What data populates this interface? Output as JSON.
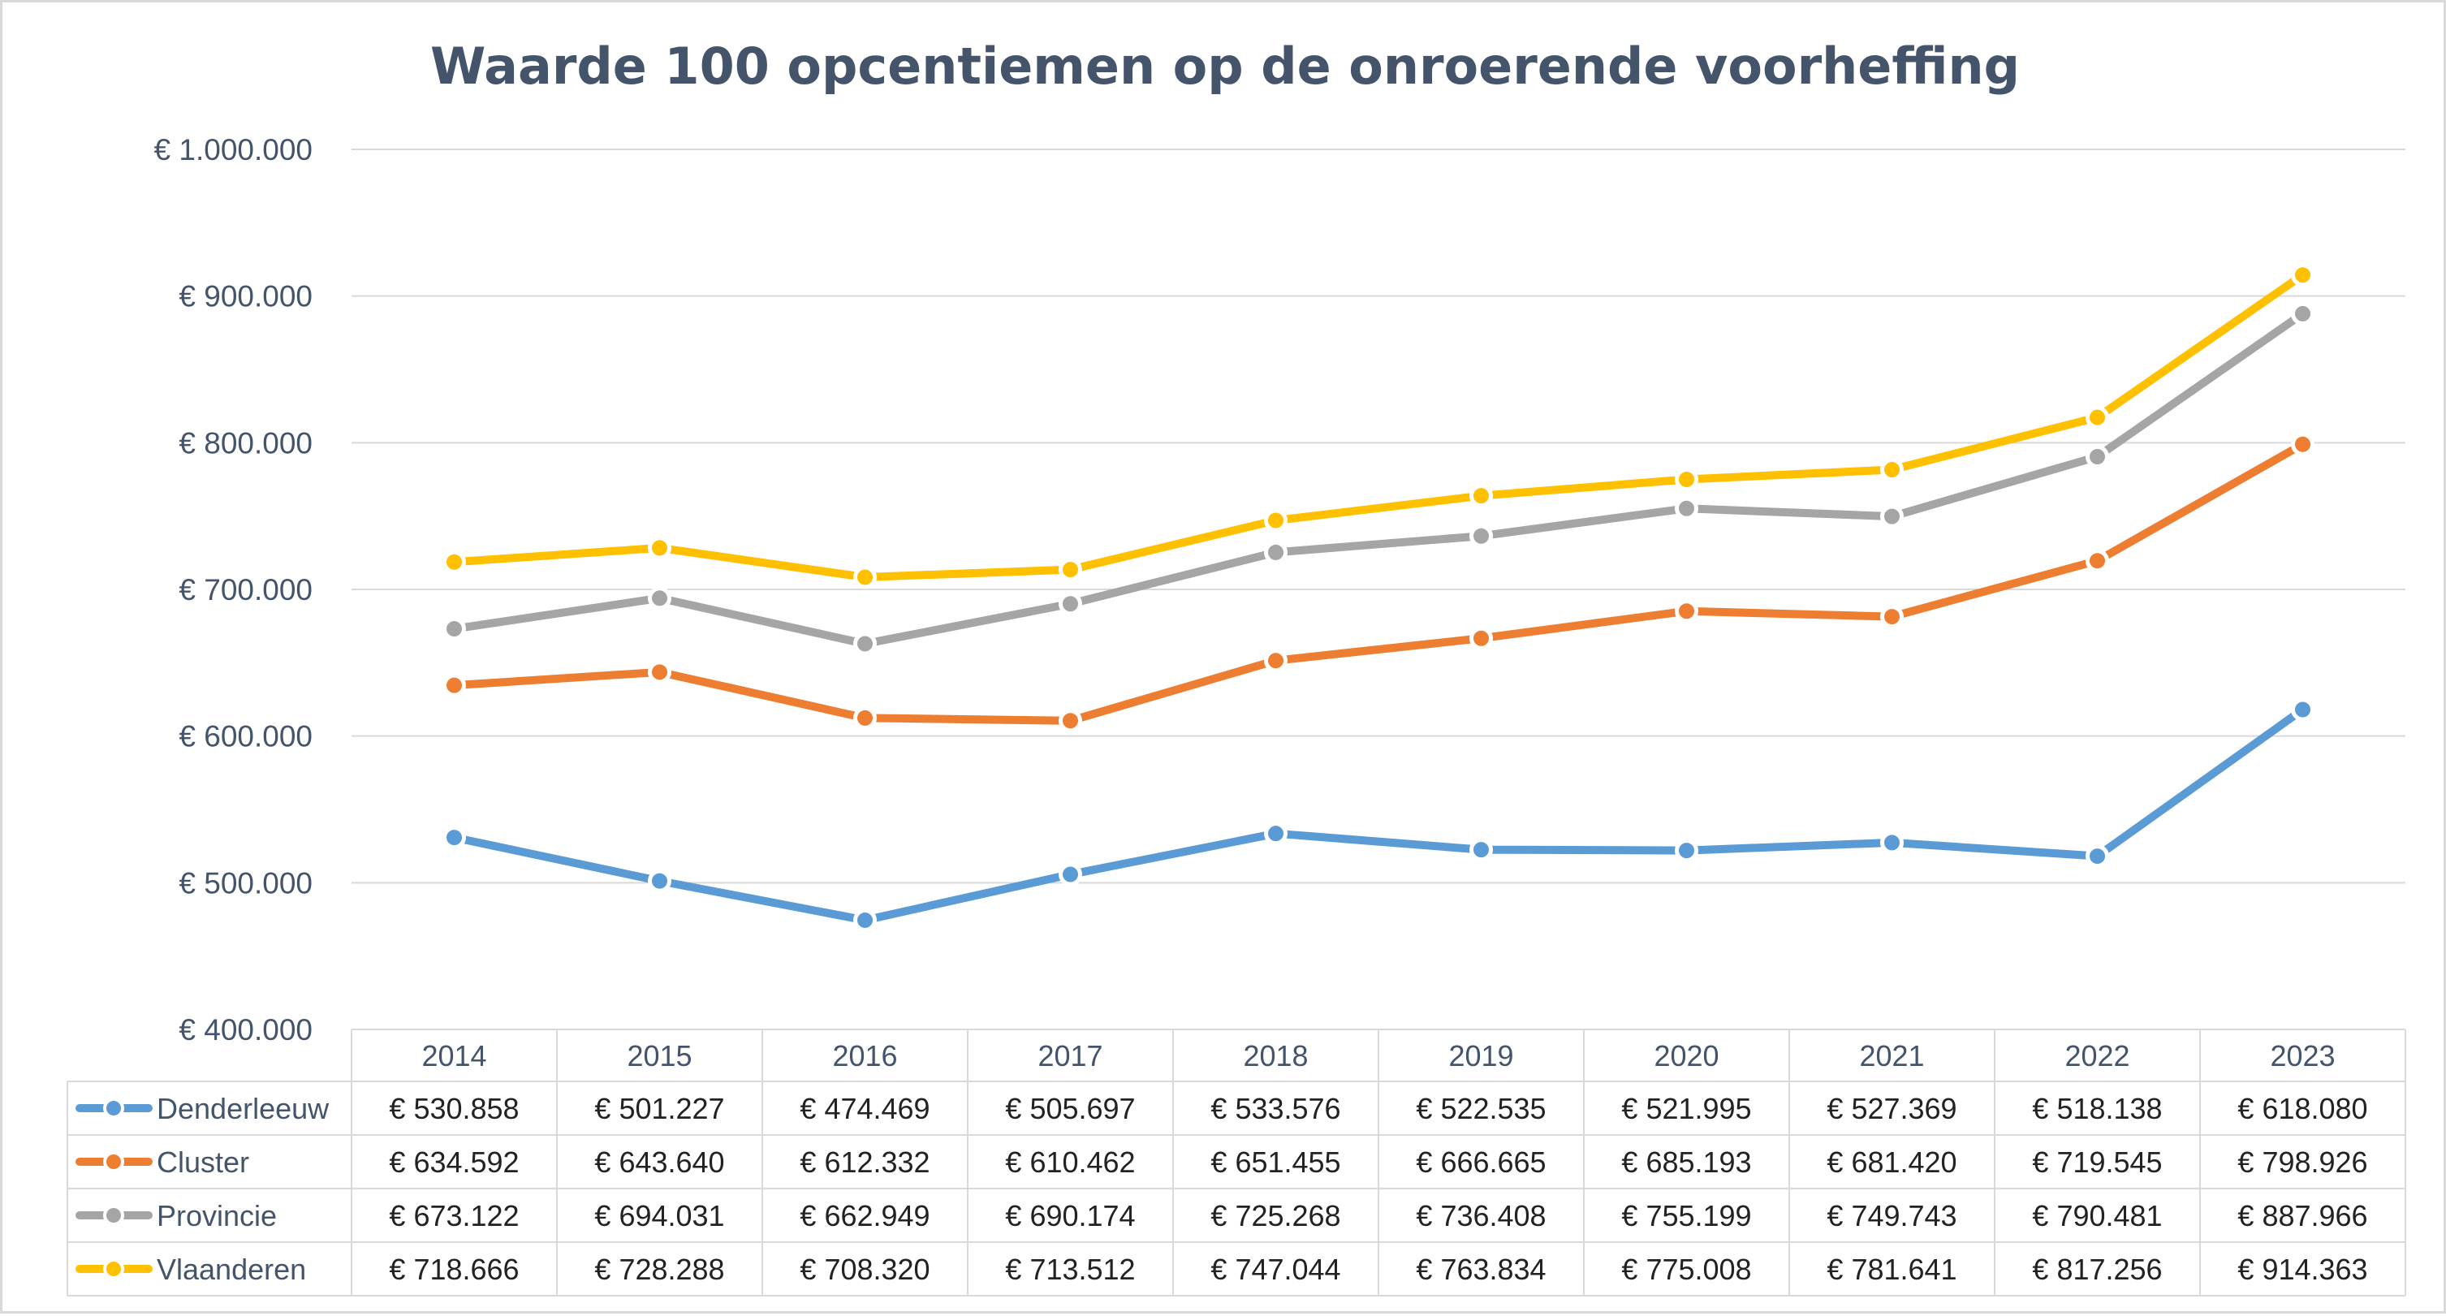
{
  "chart_data": {
    "type": "line",
    "title": "Waarde 100 opcentiemen op de onroerende voorheffing",
    "categories": [
      "2014",
      "2015",
      "2016",
      "2017",
      "2018",
      "2019",
      "2020",
      "2021",
      "2022",
      "2023"
    ],
    "ylim": [
      400000,
      1000000
    ],
    "yticks": [
      400000,
      500000,
      600000,
      700000,
      800000,
      900000,
      1000000
    ],
    "ytick_labels": [
      "€ 400.000",
      "€ 500.000",
      "€ 600.000",
      "€ 700.000",
      "€ 800.000",
      "€ 900.000",
      "€ 1.000.000"
    ],
    "grid": true,
    "legend": "data-table",
    "series": [
      {
        "name": "Denderleeuw",
        "color": "#5b9bd5",
        "values": [
          530858,
          501227,
          474469,
          505697,
          533576,
          522535,
          521995,
          527369,
          518138,
          618080
        ],
        "labels": [
          "€ 530.858",
          "€ 501.227",
          "€ 474.469",
          "€ 505.697",
          "€ 533.576",
          "€ 522.535",
          "€ 521.995",
          "€ 527.369",
          "€ 518.138",
          "€ 618.080"
        ]
      },
      {
        "name": "Cluster",
        "color": "#ed7d31",
        "values": [
          634592,
          643640,
          612332,
          610462,
          651455,
          666665,
          685193,
          681420,
          719545,
          798926
        ],
        "labels": [
          "€ 634.592",
          "€ 643.640",
          "€ 612.332",
          "€ 610.462",
          "€ 651.455",
          "€ 666.665",
          "€ 685.193",
          "€ 681.420",
          "€ 719.545",
          "€ 798.926"
        ]
      },
      {
        "name": "Provincie",
        "color": "#a5a5a5",
        "values": [
          673122,
          694031,
          662949,
          690174,
          725268,
          736408,
          755199,
          749743,
          790481,
          887966
        ],
        "labels": [
          "€ 673.122",
          "€ 694.031",
          "€ 662.949",
          "€ 690.174",
          "€ 725.268",
          "€ 736.408",
          "€ 755.199",
          "€ 749.743",
          "€ 790.481",
          "€ 887.966"
        ]
      },
      {
        "name": "Vlaanderen",
        "color": "#ffc000",
        "values": [
          718666,
          728288,
          708320,
          713512,
          747044,
          763834,
          775008,
          781641,
          817256,
          914363
        ],
        "labels": [
          "€ 718.666",
          "€ 728.288",
          "€ 708.320",
          "€ 713.512",
          "€ 747.044",
          "€ 763.834",
          "€ 775.008",
          "€ 781.641",
          "€ 817.256",
          "€ 914.363"
        ]
      }
    ]
  }
}
